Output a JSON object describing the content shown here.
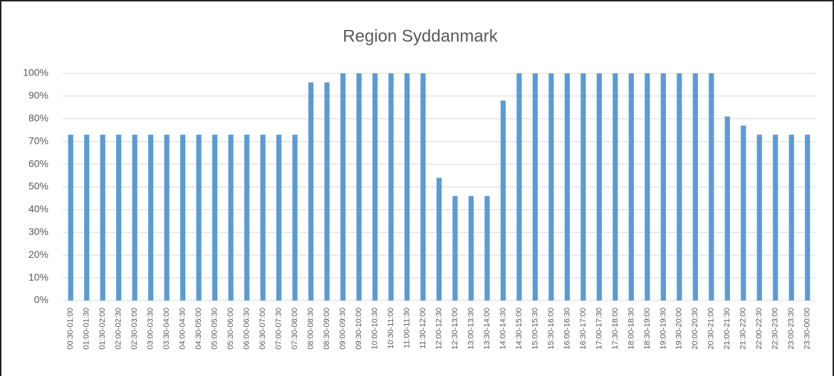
{
  "chart_data": {
    "type": "bar",
    "title": "Region Syddanmark",
    "categories": [
      "00:30-01:00",
      "01:00-01:30",
      "01:30-02:00",
      "02:00-02:30",
      "02:30-03:00",
      "03:00-03:30",
      "03:30-04:00",
      "04:00-04:30",
      "04:30-05:00",
      "05:00-05:30",
      "05:30-06:00",
      "06:00-06:30",
      "06:30-07:00",
      "07:00-07:30",
      "07:30-08:00",
      "08:00-08:30",
      "08:30-09:00",
      "09:00-09:30",
      "09:30-10:00",
      "10:00-10:30",
      "10:30-11:00",
      "11:00-11:30",
      "11:30-12:00",
      "12:00-12:30",
      "12:30-13:00",
      "13:00-13:30",
      "13:30-14:00",
      "14:00-14:30",
      "14:30-15:00",
      "15:00-15:30",
      "15:30-16:00",
      "16:00-16:30",
      "16:30-17:00",
      "17:00-17:30",
      "17:30-18:00",
      "18:00-18:30",
      "18:30-19:00",
      "19:00-19:30",
      "19:30-20:00",
      "20:00-20:30",
      "20:30-21:00",
      "21:00-21:30",
      "21:30-22:00",
      "22:00-22:30",
      "22:30-23:00",
      "23:00-23:30",
      "23:30-00:00"
    ],
    "values": [
      73,
      73,
      73,
      73,
      73,
      73,
      73,
      73,
      73,
      73,
      73,
      73,
      73,
      73,
      73,
      96,
      96,
      100,
      100,
      100,
      100,
      100,
      100,
      54,
      46,
      46,
      46,
      88,
      100,
      100,
      100,
      100,
      100,
      100,
      100,
      100,
      100,
      100,
      100,
      100,
      100,
      81,
      77,
      73,
      73,
      73,
      73
    ],
    "color": "#5b9bd5",
    "ylim": [
      0,
      100
    ],
    "yticks": [
      {
        "value": 0,
        "label": "0%"
      },
      {
        "value": 10,
        "label": "10%"
      },
      {
        "value": 20,
        "label": "20%"
      },
      {
        "value": 30,
        "label": "30%"
      },
      {
        "value": 40,
        "label": "40%"
      },
      {
        "value": 50,
        "label": "50%"
      },
      {
        "value": 60,
        "label": "60%"
      },
      {
        "value": 70,
        "label": "70%"
      },
      {
        "value": 80,
        "label": "80%"
      },
      {
        "value": 90,
        "label": "90%"
      },
      {
        "value": 100,
        "label": "100%"
      }
    ],
    "grid": true
  }
}
